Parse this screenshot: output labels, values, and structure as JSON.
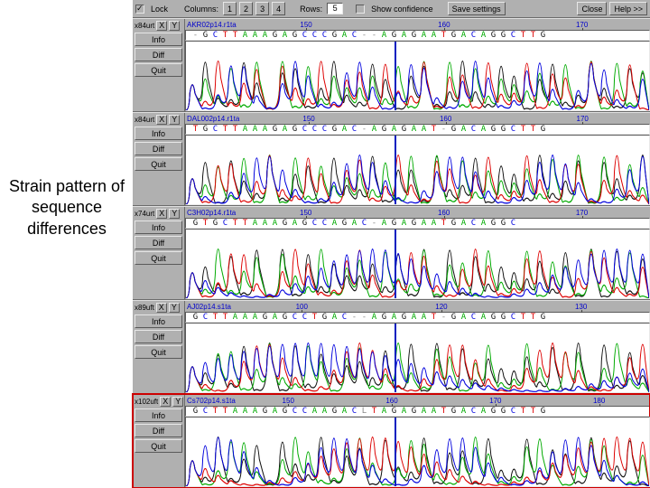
{
  "caption": "Strain pattern of sequence differences",
  "toolbar": {
    "lock_checked": true,
    "lock_label": "Lock",
    "columns_label": "Columns:",
    "col_btns": [
      "1",
      "2",
      "3",
      "4"
    ],
    "rows_label": "Rows:",
    "rows_value": "5",
    "show_conf_checked": false,
    "show_conf_label": "Show confidence",
    "save_label": "Save settings",
    "close_label": "Close",
    "help_label": "Help >>"
  },
  "side_buttons": [
    "Info",
    "Diff",
    "Quit"
  ],
  "side_xy": {
    "x": "X",
    "y": "Y"
  },
  "trace_colors": {
    "A": "#00aa00",
    "C": "#0000dd",
    "G": "#111111",
    "T": "#dd0000"
  },
  "ui_colors": {
    "panel": "#b0b0b0",
    "bg": "#ffffff",
    "cursor": "#0020c0",
    "highlight": "#cc0000",
    "ruler": "#0000cc"
  },
  "tracks": [
    {
      "id": "x84urt",
      "filename": "AKR02p14.r1ta",
      "ticks": [
        "150",
        "160",
        "170"
      ],
      "sequence": "-GCTTAAAGAGCCCGAC--AGAGAATGACAGGCTTG",
      "highlight": false
    },
    {
      "id": "x84urt",
      "filename": "DAL002p14.r1ta",
      "ticks": [
        "150",
        "160",
        "170"
      ],
      "sequence": "TGCTTAAAGAGCCCGAC-AGAGAAT-GACAGGCTTG",
      "highlight": false
    },
    {
      "id": "x74urt",
      "filename": "C3H02p14.r1ta",
      "ticks": [
        "150",
        "160",
        "170"
      ],
      "sequence": "GTGCTTAAAGAGCCAGAC-AGAGAATGACAGGC   ",
      "highlight": false
    },
    {
      "id": "x89uft",
      "filename": "AJ02p14.s1ta",
      "ticks": [
        "100",
        "120",
        "130"
      ],
      "sequence": "GCTTAAAGAGCCTGAC--AGAGAAT-GACAGGCTTG",
      "highlight": false
    },
    {
      "id": "x102uft",
      "filename": "Cs702p14.s1ta",
      "ticks": [
        "150",
        "160",
        "170",
        "180"
      ],
      "sequence": "GCTTAAAGAGCCAAGACLTAGAGAATGACAGGCTTG",
      "highlight": true
    }
  ],
  "font": {
    "ui_size": 9,
    "caption_size": 18
  }
}
